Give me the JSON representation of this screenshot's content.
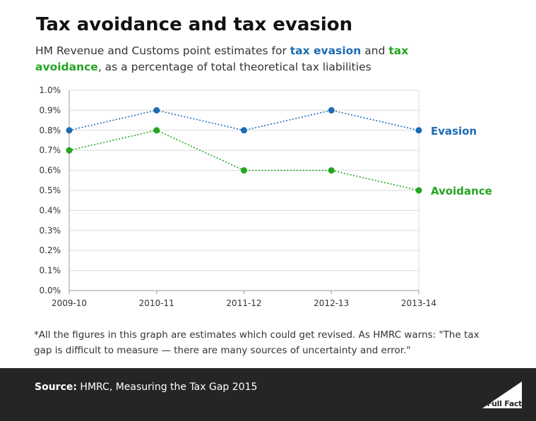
{
  "title": "Tax avoidance and tax evasion",
  "subtitle": {
    "prefix": "HM Revenue and Customs point estimates for ",
    "evasion_word": "tax evasion",
    "middle": " and ",
    "avoidance_word": "tax avoidance",
    "suffix": ", as a percentage of total theoretical tax liabilities"
  },
  "colors": {
    "evasion": "#1d6bb5",
    "avoidance": "#23a521",
    "footer_bg": "#252525"
  },
  "chart_data": {
    "type": "line",
    "categories": [
      "2009-10",
      "2010-11",
      "2011-12",
      "2012-13",
      "2013-14"
    ],
    "ylim": [
      0,
      1.0
    ],
    "yticks": [
      "0.0%",
      "0.1%",
      "0.2%",
      "0.3%",
      "0.4%",
      "0.5%",
      "0.6%",
      "0.7%",
      "0.8%",
      "0.9%",
      "1.0%"
    ],
    "grid": true,
    "series": [
      {
        "name": "Evasion",
        "values": [
          0.8,
          0.9,
          0.8,
          0.9,
          0.8
        ],
        "color": "#1d6bb5"
      },
      {
        "name": "Avoidance",
        "values": [
          0.7,
          0.8,
          0.6,
          0.6,
          0.5
        ],
        "color": "#23a521"
      }
    ]
  },
  "footnote": "*All the figures in this graph are estimates which could get revised. As HMRC warns: \"The tax gap is difficult to measure — there are many sources of uncertainty and error.\"",
  "footer": {
    "source_label": "Source:",
    "source_text": " HMRC, Measuring the Tax Gap 2015",
    "logo_text": "Full Fact"
  }
}
